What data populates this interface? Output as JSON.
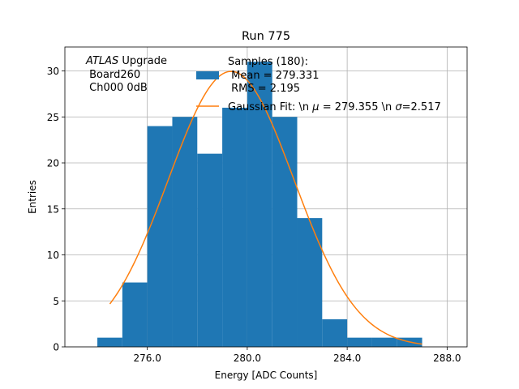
{
  "chart_data": {
    "type": "bar",
    "title": "Run 775",
    "xlabel": "Energy [ADC Counts]",
    "ylabel": "Entries",
    "xlim": [
      272.7,
      288.8
    ],
    "ylim": [
      0,
      32.6
    ],
    "grid": true,
    "xticks": [
      276.0,
      280.0,
      284.0,
      288.0
    ],
    "xtick_labels": [
      "276.0",
      "280.0",
      "284.0",
      "288.0"
    ],
    "yticks": [
      0,
      5,
      10,
      15,
      20,
      25,
      30
    ],
    "ytick_labels": [
      "0",
      "5",
      "10",
      "15",
      "20",
      "25",
      "30"
    ],
    "histogram": {
      "bin_edges": [
        274,
        275,
        276,
        277,
        278,
        279,
        280,
        281,
        282,
        283,
        284,
        285,
        286,
        287
      ],
      "counts": [
        1,
        7,
        24,
        25,
        21,
        26,
        31,
        25,
        14,
        3,
        1,
        1,
        1
      ],
      "color": "#1f77b4"
    },
    "gaussian_fit": {
      "mu": 279.355,
      "sigma": 2.517,
      "amplitude": 29.95,
      "x_range": [
        274.5,
        287.0
      ],
      "color": "#ff7f0e"
    },
    "annotation": {
      "italic": "ATLAS",
      "rest": " Upgrade",
      "line2": " Board260",
      "line3": " Ch000 0dB"
    },
    "legend": {
      "placement": "top-center",
      "hist_line1": "Samples (180):",
      "hist_line2": " Mean = 279.331",
      "hist_line3": " RMS = 2.195",
      "fit_prefix": "Gaussian Fit: \\n ",
      "fit_mu_symbol": "μ",
      "fit_mid": " = 279.355 \\n ",
      "fit_sigma_symbol": "σ",
      "fit_suffix": "=2.517"
    }
  }
}
